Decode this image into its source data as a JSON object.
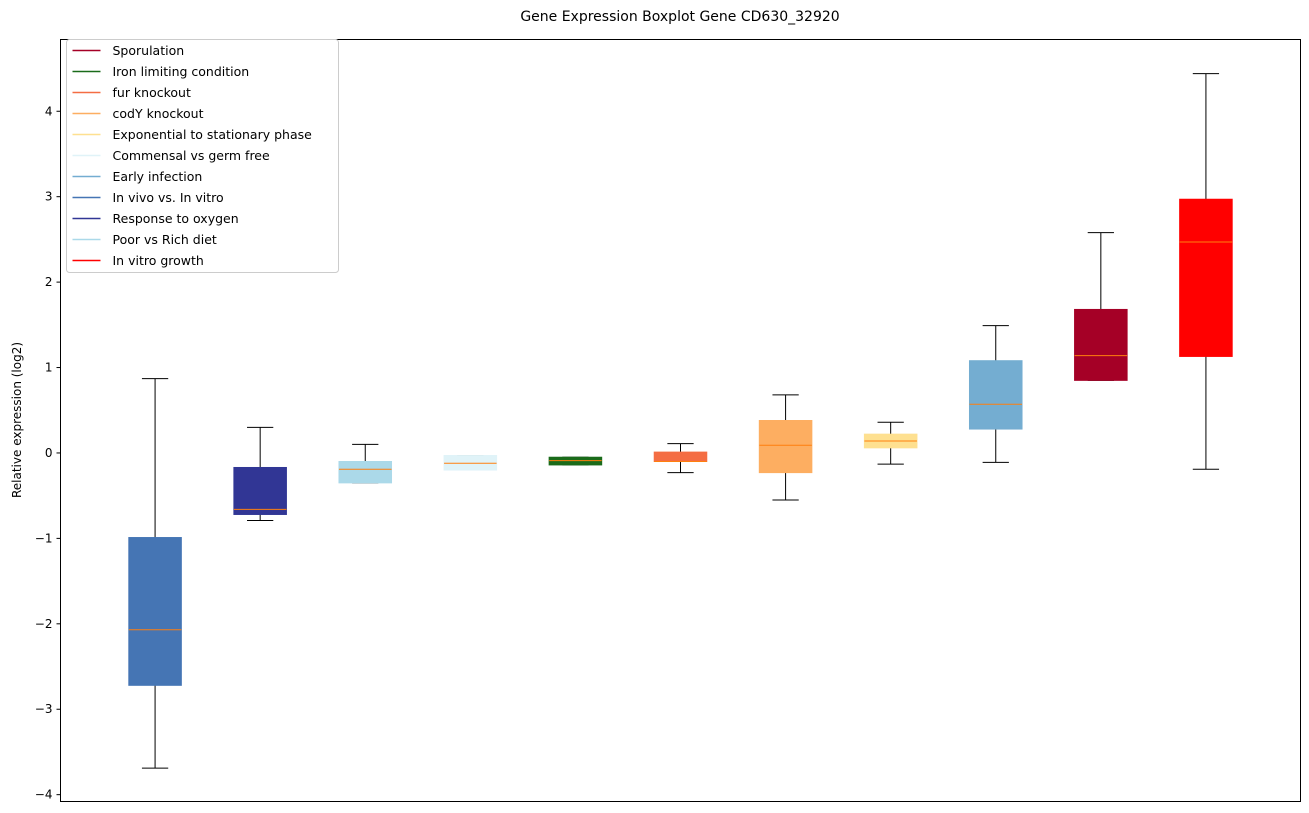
{
  "chart_data": {
    "type": "boxplot",
    "title": "Gene Expression Boxplot Gene CD630_32920",
    "xlabel": "",
    "ylabel": "Relative expression (log2)",
    "ylim": [
      -4.08,
      4.84
    ],
    "yticks": [
      -4,
      -3,
      -2,
      -1,
      0,
      1,
      2,
      3,
      4
    ],
    "ytick_labels": [
      "−4",
      "−3",
      "−2",
      "−1",
      "0",
      "1",
      "2",
      "3",
      "4"
    ],
    "median_color": "#ff7f0e",
    "legend": [
      {
        "label": "Sporulation",
        "color": "#a50026"
      },
      {
        "label": "Iron limiting condition",
        "color": "#1a6b1a"
      },
      {
        "label": "fur knockout",
        "color": "#f46d43"
      },
      {
        "label": "codY knockout",
        "color": "#fdae61"
      },
      {
        "label": "Exponential to stationary phase",
        "color": "#fee090"
      },
      {
        "label": "Commensal vs germ free",
        "color": "#e0f3f8"
      },
      {
        "label": "Early infection",
        "color": "#74add1"
      },
      {
        "label": "In vivo vs. In vitro",
        "color": "#4575b4"
      },
      {
        "label": "Response to oxygen",
        "color": "#313695"
      },
      {
        "label": "Poor vs Rich diet",
        "color": "#abd9e9"
      },
      {
        "label": "In vitro growth",
        "color": "#ff0000"
      }
    ],
    "boxes": [
      {
        "condition": "In vivo vs. In vitro",
        "color": "#4575b4",
        "whislo": -3.69,
        "q1": -2.72,
        "median": -2.07,
        "q3": -0.99,
        "whishi": 0.87
      },
      {
        "condition": "Response to oxygen",
        "color": "#313695",
        "whislo": -0.79,
        "q1": -0.72,
        "median": -0.66,
        "q3": -0.17,
        "whishi": 0.3
      },
      {
        "condition": "Poor vs Rich diet",
        "color": "#abd9e9",
        "whislo": -0.35,
        "q1": -0.35,
        "median": -0.19,
        "q3": -0.1,
        "whishi": 0.1
      },
      {
        "condition": "Commensal vs germ free",
        "color": "#e0f3f8",
        "whislo": -0.2,
        "q1": -0.2,
        "median": -0.12,
        "q3": -0.03,
        "whishi": -0.03
      },
      {
        "condition": "Iron limiting condition",
        "color": "#1a6b1a",
        "whislo": -0.14,
        "q1": -0.14,
        "median": -0.09,
        "q3": -0.05,
        "whishi": -0.05
      },
      {
        "condition": "fur knockout",
        "color": "#f46d43",
        "whislo": -0.23,
        "q1": -0.1,
        "median": -0.1,
        "q3": 0.01,
        "whishi": 0.11
      },
      {
        "condition": "codY knockout",
        "color": "#fdae61",
        "whislo": -0.55,
        "q1": -0.23,
        "median": 0.09,
        "q3": 0.38,
        "whishi": 0.68
      },
      {
        "condition": "Exponential to stationary phase",
        "color": "#fee090",
        "whislo": -0.13,
        "q1": 0.06,
        "median": 0.14,
        "q3": 0.22,
        "whishi": 0.36
      },
      {
        "condition": "Early infection",
        "color": "#74add1",
        "whislo": -0.11,
        "q1": 0.28,
        "median": 0.57,
        "q3": 1.08,
        "whishi": 1.49
      },
      {
        "condition": "Sporulation",
        "color": "#a50026",
        "whislo": 0.85,
        "q1": 0.85,
        "median": 1.14,
        "q3": 1.68,
        "whishi": 2.58
      },
      {
        "condition": "In vitro growth",
        "color": "#ff0000",
        "whislo": -0.19,
        "q1": 1.13,
        "median": 2.47,
        "q3": 2.97,
        "whishi": 4.44
      }
    ]
  }
}
